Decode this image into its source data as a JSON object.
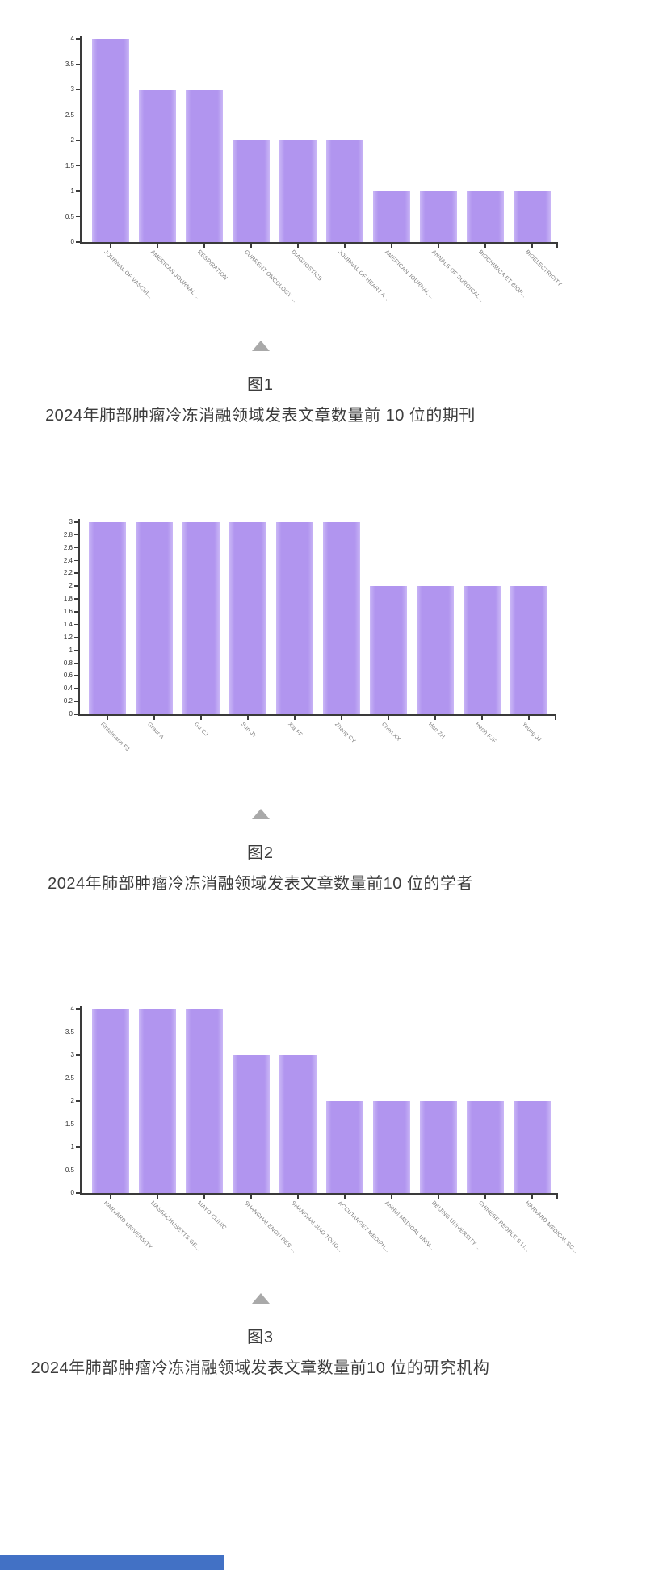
{
  "page": {
    "figures": [
      {
        "figure_label": "图1",
        "caption": "2024年肺部肿瘤冷冻消融领域发表文章数量前 10 位的期刊"
      },
      {
        "figure_label": "图2",
        "caption": "2024年肺部肿瘤冷冻消融领域发表文章数量前10 位的学者"
      },
      {
        "figure_label": "图3",
        "caption": "2024年肺部肿瘤冷冻消融领域发表文章数量前10 位的研究机构"
      }
    ],
    "icons": {
      "collapse_triangle": "triangle-up",
      "triangle_color": "#a9a9a9"
    },
    "footer_bar_color": "#4271c5"
  },
  "chart_data": [
    {
      "type": "bar",
      "title": "2024年肺部肿瘤冷冻消融领域发表文章数量前 10 位的期刊",
      "categories": [
        "JOURNAL OF VASCUL...",
        "AMERICAN JOURNAL ...",
        "RESPIRATION",
        "CURRENT ONCOLOGY ...",
        "DIAGNOSTICS",
        "JOURNAL OF HEART A...",
        "AMERICAN JOURNAL ...",
        "ANNALS OF SURGICAL...",
        "BIOCHIMICA ET BIOP...",
        "BIOELECTRICITY"
      ],
      "values": [
        4,
        3,
        3,
        2,
        2,
        2,
        1,
        1,
        1,
        1
      ],
      "xlabel": "",
      "ylabel": "",
      "ylim": [
        0,
        4
      ],
      "ytick_step": 0.5,
      "grid": false,
      "legend": false,
      "bar_color": "#b49bf0"
    },
    {
      "type": "bar",
      "title": "2024年肺部肿瘤冷冻消融领域发表文章数量前10 位的学者",
      "categories": [
        "Fintelmann FJ",
        "Graur A",
        "Gu CJ",
        "Sun JY",
        "Xia FF",
        "Zhang CY",
        "Chen XX",
        "Han ZH",
        "Herth FJF",
        "Yeung JJ"
      ],
      "values": [
        3,
        3,
        3,
        3,
        3,
        3,
        2,
        2,
        2,
        2
      ],
      "xlabel": "",
      "ylabel": "",
      "ylim": [
        0,
        3
      ],
      "ytick_step": 0.2,
      "grid": false,
      "legend": false,
      "bar_color": "#b49bf0"
    },
    {
      "type": "bar",
      "title": "2024年肺部肿瘤冷冻消融领域发表文章数量前10 位的研究机构",
      "categories": [
        "HARVARD UNIVERSITY",
        "MASSACHUSETTS GE...",
        "MAYO CLINIC",
        "SHANGHAI ENGN RES ...",
        "SHANGHAI JIAO TONG...",
        "ACCUTARGET MEDIPH...",
        "ANHUI MEDICAL UNIV...",
        "BEIJING UNIVERSITY ...",
        "CHINESE PEOPLE S LI...",
        "HARVARD MEDICAL SC..."
      ],
      "values": [
        4,
        4,
        4,
        3,
        3,
        2,
        2,
        2,
        2,
        2
      ],
      "xlabel": "",
      "ylabel": "",
      "ylim": [
        0,
        4
      ],
      "ytick_step": 0.5,
      "grid": false,
      "legend": false,
      "bar_color": "#b49bf0"
    }
  ]
}
